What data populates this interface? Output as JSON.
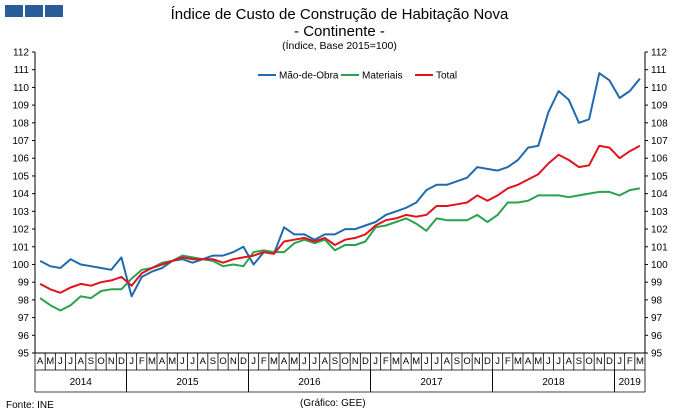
{
  "chart_data": {
    "type": "line",
    "title": "Índice de Custo de Construção de Habitação Nova",
    "subtitle": "- Continente -",
    "note": "(Índice, Base 2015=100)",
    "source": "Fonte: INE",
    "credit": "(Gráfico: GEE)",
    "ylim": [
      95,
      112
    ],
    "yticks": [
      95,
      96,
      97,
      98,
      99,
      100,
      101,
      102,
      103,
      104,
      105,
      106,
      107,
      108,
      109,
      110,
      111,
      112
    ],
    "months": [
      "A",
      "M",
      "J",
      "J",
      "A",
      "S",
      "O",
      "N",
      "D",
      "J",
      "F",
      "M",
      "A",
      "M",
      "J",
      "J",
      "A",
      "S",
      "O",
      "N",
      "D",
      "J",
      "F",
      "M",
      "A",
      "M",
      "J",
      "J",
      "A",
      "S",
      "O",
      "N",
      "D",
      "J",
      "F",
      "M",
      "A",
      "M",
      "J",
      "J",
      "A",
      "S",
      "O",
      "N",
      "D",
      "J",
      "F",
      "M",
      "A",
      "M",
      "J",
      "J",
      "A",
      "S",
      "O",
      "N",
      "D",
      "J",
      "F",
      "M"
    ],
    "years": [
      {
        "label": "2014",
        "start": 0,
        "end": 9
      },
      {
        "label": "2015",
        "start": 9,
        "end": 21
      },
      {
        "label": "2016",
        "start": 21,
        "end": 33
      },
      {
        "label": "2017",
        "start": 33,
        "end": 45
      },
      {
        "label": "2018",
        "start": 45,
        "end": 57
      },
      {
        "label": "2019",
        "start": 57,
        "end": 60
      }
    ],
    "series": [
      {
        "name": "Mão-de-Obra",
        "color": "#1f6aaf",
        "values": [
          100.2,
          99.9,
          99.8,
          100.3,
          100.0,
          99.9,
          99.8,
          99.7,
          100.4,
          98.2,
          99.3,
          99.6,
          99.8,
          100.2,
          100.3,
          100.1,
          100.3,
          100.5,
          100.5,
          100.7,
          101.0,
          100.0,
          100.7,
          100.6,
          102.1,
          101.7,
          101.7,
          101.4,
          101.7,
          101.7,
          102.0,
          102.0,
          102.2,
          102.4,
          102.8,
          103.0,
          103.2,
          103.5,
          104.2,
          104.5,
          104.5,
          104.7,
          104.9,
          105.5,
          105.4,
          105.3,
          105.5,
          105.9,
          106.6,
          106.7,
          108.6,
          109.8,
          109.3,
          108.0,
          108.2,
          110.8,
          110.4,
          109.4,
          109.8,
          110.5
        ]
      },
      {
        "name": "Materiais",
        "color": "#2aa14f",
        "values": [
          98.1,
          97.7,
          97.4,
          97.7,
          98.2,
          98.1,
          98.5,
          98.6,
          98.6,
          99.2,
          99.7,
          99.8,
          100.1,
          100.2,
          100.5,
          100.4,
          100.3,
          100.2,
          99.9,
          100.0,
          99.9,
          100.7,
          100.8,
          100.7,
          100.7,
          101.2,
          101.4,
          101.2,
          101.4,
          100.8,
          101.1,
          101.1,
          101.3,
          102.1,
          102.2,
          102.4,
          102.6,
          102.3,
          101.9,
          102.6,
          102.5,
          102.5,
          102.5,
          102.8,
          102.4,
          102.8,
          103.5,
          103.5,
          103.6,
          103.9,
          103.9,
          103.9,
          103.8,
          103.9,
          104.0,
          104.1,
          104.1,
          103.9,
          104.2,
          104.3
        ]
      },
      {
        "name": "Total",
        "color": "#e0131b",
        "values": [
          98.9,
          98.6,
          98.4,
          98.7,
          98.9,
          98.8,
          99.0,
          99.1,
          99.3,
          98.8,
          99.5,
          99.8,
          100.0,
          100.2,
          100.4,
          100.3,
          100.3,
          100.3,
          100.1,
          100.3,
          100.4,
          100.5,
          100.7,
          100.6,
          101.3,
          101.4,
          101.5,
          101.3,
          101.5,
          101.1,
          101.4,
          101.5,
          101.7,
          102.2,
          102.5,
          102.6,
          102.8,
          102.7,
          102.8,
          103.3,
          103.3,
          103.4,
          103.5,
          103.9,
          103.6,
          103.9,
          104.3,
          104.5,
          104.8,
          105.1,
          105.7,
          106.2,
          105.9,
          105.5,
          105.6,
          106.7,
          106.6,
          106.0,
          106.4,
          106.7
        ]
      }
    ],
    "legend_position": "top-center"
  }
}
